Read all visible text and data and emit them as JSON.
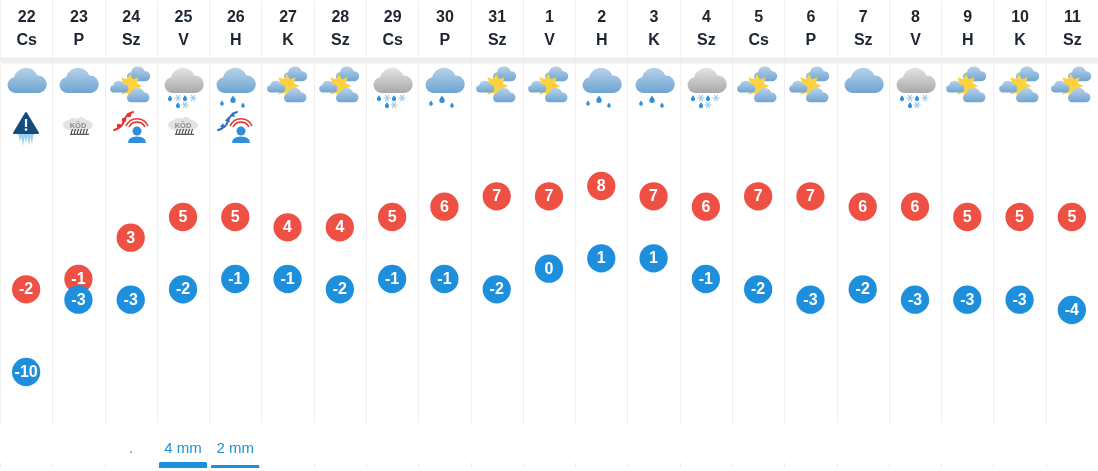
{
  "chart_data": [
    {
      "type": "scatter",
      "categories": [
        "22 Cs",
        "23 P",
        "24 Sz",
        "25 V",
        "26 H",
        "27 K",
        "28 Sz",
        "29 Cs",
        "30 P",
        "31 Sz",
        "1 V",
        "2 H",
        "3 K",
        "4 Sz",
        "5 Cs",
        "6 P",
        "7 Sz",
        "8 V",
        "9 H",
        "10 K",
        "11 Sz"
      ],
      "series": [
        {
          "color": "#ef5044",
          "values": [
            -2,
            -1,
            3,
            5,
            5,
            4,
            4,
            5,
            6,
            7,
            7,
            8,
            7,
            6,
            7,
            7,
            6,
            6,
            5,
            5,
            5
          ]
        },
        {
          "color": "#1e8fdc",
          "values": [
            -10,
            -3,
            -3,
            -2,
            -1,
            -1,
            -2,
            -1,
            -1,
            -2,
            0,
            1,
            1,
            -1,
            -2,
            -3,
            -2,
            -3,
            -3,
            -3,
            -4
          ]
        }
      ],
      "marker": "circle",
      "data_labels": true,
      "grid": "x",
      "tick_labels": "x",
      "annotations": [
        "KÖD",
        "KÖD"
      ]
    },
    {
      "type": "bar",
      "categories": [
        null,
        null,
        null,
        null,
        null,
        null,
        null,
        null,
        null,
        null,
        null,
        null,
        null,
        null,
        null,
        null,
        null,
        null,
        null,
        null,
        null
      ],
      "color": "#1e8fdc",
      "values": [
        null,
        null,
        null,
        4,
        2,
        null,
        null,
        null,
        null,
        null,
        null,
        null,
        null,
        null,
        null,
        null,
        null,
        null,
        null,
        null,
        null
      ],
      "value_labels": [
        null,
        null,
        ".",
        "4 mm",
        "2 mm",
        null,
        null,
        null,
        null,
        null,
        null,
        null,
        null,
        null,
        null,
        null,
        null,
        null,
        null,
        null,
        null
      ],
      "grid": "x",
      "tick_labels": false
    }
  ]
}
